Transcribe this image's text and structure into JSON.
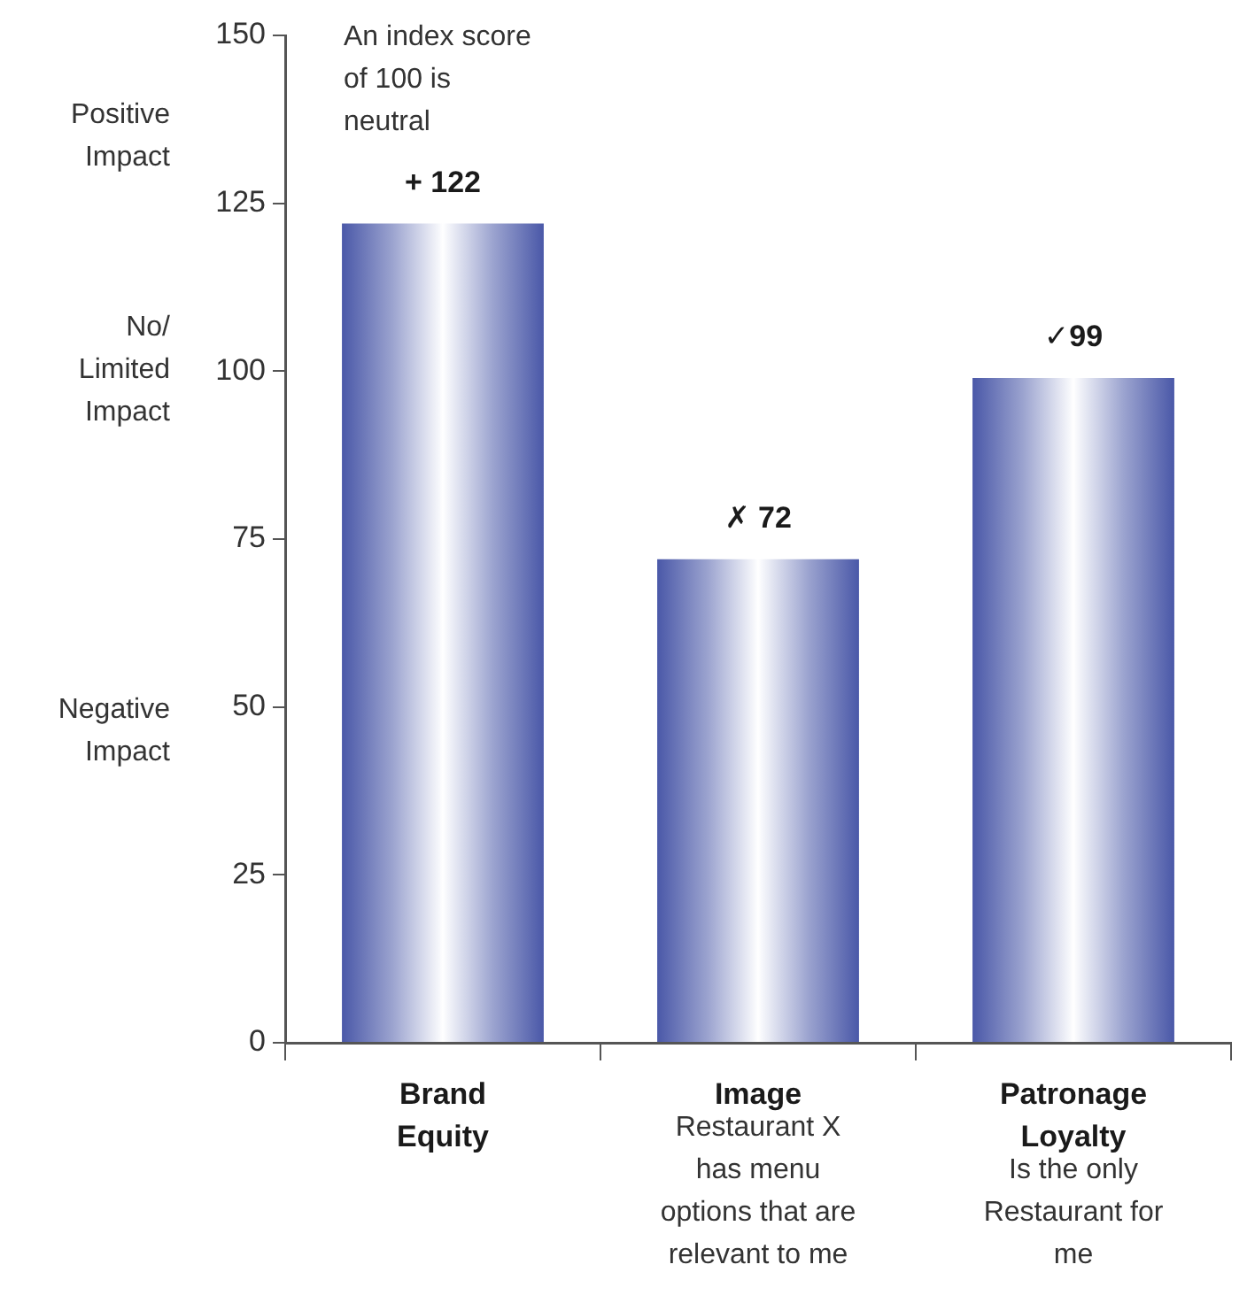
{
  "chart_data": {
    "type": "bar",
    "categories": [
      "Brand Equity",
      "Image",
      "Patronage Loyalty"
    ],
    "values": [
      122,
      72,
      99
    ],
    "color": "#4a58a8",
    "value_labels": [
      "+ 122",
      "✗ 72",
      "✓99"
    ],
    "ylim": [
      0,
      150
    ],
    "yticks": [
      0,
      25,
      50,
      75,
      100,
      125,
      150
    ],
    "grid": false,
    "legend": false,
    "annotations": [
      "An index score of 100 is neutral",
      "Positive Impact",
      "No/ Limited Impact",
      "Negative Impact",
      "Restaurant X has menu options that are relevant to me",
      "Is the only Restaurant for me"
    ]
  }
}
